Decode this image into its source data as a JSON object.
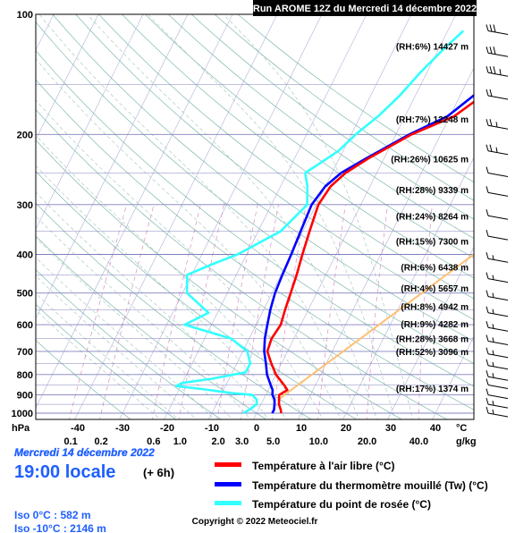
{
  "header": {
    "title": "Run AROME 12Z du Mercredi 14 décembre 2022"
  },
  "chart_data": {
    "type": "line",
    "y_unit": "hPa",
    "x_unit": "°C",
    "mixing_unit": "g/kg",
    "pressure_ticks": [
      "100",
      "200",
      "300",
      "400",
      "500",
      "600",
      "700",
      "800",
      "900",
      "1000"
    ],
    "temperature_ticks": [
      "-40",
      "-30",
      "-20",
      "-10",
      "0",
      "10",
      "20",
      "30",
      "40"
    ],
    "mixing_ticks": [
      "0.1",
      "0.2",
      "0.6",
      "1.0",
      "2.0",
      "3.0",
      "5.0",
      "10.0",
      "20.0",
      "40.0"
    ],
    "series": [
      {
        "name": "Température à l'air libre (°C)",
        "color": "#ff0000",
        "points": [
          {
            "p": 1000,
            "t": 5.5
          },
          {
            "p": 980,
            "t": 5
          },
          {
            "p": 950,
            "t": 4
          },
          {
            "p": 925,
            "t": 3.5
          },
          {
            "p": 900,
            "t": 3
          },
          {
            "p": 875,
            "t": 4.3
          },
          {
            "p": 850,
            "t": 3
          },
          {
            "p": 800,
            "t": 0
          },
          {
            "p": 750,
            "t": -2.3
          },
          {
            "p": 700,
            "t": -4.5
          },
          {
            "p": 650,
            "t": -5
          },
          {
            "p": 600,
            "t": -4.5
          },
          {
            "p": 550,
            "t": -5.2
          },
          {
            "p": 500,
            "t": -5.8
          },
          {
            "p": 450,
            "t": -6.5
          },
          {
            "p": 400,
            "t": -7.5
          },
          {
            "p": 350,
            "t": -8.5
          },
          {
            "p": 300,
            "t": -9.5
          },
          {
            "p": 270,
            "t": -8.8
          },
          {
            "p": 250,
            "t": -7
          },
          {
            "p": 230,
            "t": -3.5
          },
          {
            "p": 200,
            "t": 3.5
          },
          {
            "p": 180,
            "t": 11
          },
          {
            "p": 160,
            "t": 15
          },
          {
            "p": 140,
            "t": 21.5
          },
          {
            "p": 120,
            "t": 28
          },
          {
            "p": 100,
            "t": 35
          }
        ]
      },
      {
        "name": "Température du thermomètre mouillé (Tw) (°C)",
        "color": "#0000ff",
        "points": [
          {
            "p": 1000,
            "t": 3.5
          },
          {
            "p": 980,
            "t": 3.5
          },
          {
            "p": 950,
            "t": 3
          },
          {
            "p": 925,
            "t": 2.5
          },
          {
            "p": 900,
            "t": 1.5
          },
          {
            "p": 875,
            "t": 1
          },
          {
            "p": 850,
            "t": 0
          },
          {
            "p": 800,
            "t": -2
          },
          {
            "p": 750,
            "t": -3.5
          },
          {
            "p": 700,
            "t": -5.2
          },
          {
            "p": 650,
            "t": -6.5
          },
          {
            "p": 600,
            "t": -7.5
          },
          {
            "p": 550,
            "t": -8.5
          },
          {
            "p": 500,
            "t": -9.3
          },
          {
            "p": 450,
            "t": -9.7
          },
          {
            "p": 400,
            "t": -10
          },
          {
            "p": 350,
            "t": -10.5
          },
          {
            "p": 300,
            "t": -11
          },
          {
            "p": 270,
            "t": -10
          },
          {
            "p": 250,
            "t": -8
          },
          {
            "p": 230,
            "t": -4
          },
          {
            "p": 200,
            "t": 3
          },
          {
            "p": 180,
            "t": 9.5
          },
          {
            "p": 160,
            "t": 13
          },
          {
            "p": 140,
            "t": 19
          },
          {
            "p": 120,
            "t": 26
          },
          {
            "p": 100,
            "t": 33
          }
        ]
      },
      {
        "name": "Température du point de rosée (°C)",
        "color": "#33ffff",
        "points": [
          {
            "p": 1000,
            "t": -3
          },
          {
            "p": 980,
            "t": -2
          },
          {
            "p": 950,
            "t": -1
          },
          {
            "p": 925,
            "t": -1.5
          },
          {
            "p": 900,
            "t": -3
          },
          {
            "p": 890,
            "t": -8
          },
          {
            "p": 870,
            "t": -15
          },
          {
            "p": 855,
            "t": -21
          },
          {
            "p": 840,
            "t": -20
          },
          {
            "p": 820,
            "t": -14
          },
          {
            "p": 790,
            "t": -7
          },
          {
            "p": 750,
            "t": -7
          },
          {
            "p": 700,
            "t": -9
          },
          {
            "p": 650,
            "t": -14
          },
          {
            "p": 600,
            "t": -26
          },
          {
            "p": 580,
            "t": -24
          },
          {
            "p": 560,
            "t": -22
          },
          {
            "p": 500,
            "t": -29
          },
          {
            "p": 450,
            "t": -31
          },
          {
            "p": 420,
            "t": -26
          },
          {
            "p": 400,
            "t": -22
          },
          {
            "p": 350,
            "t": -15
          },
          {
            "p": 300,
            "t": -12
          },
          {
            "p": 270,
            "t": -14
          },
          {
            "p": 250,
            "t": -16
          },
          {
            "p": 220,
            "t": -11
          },
          {
            "p": 200,
            "t": -9
          },
          {
            "p": 180,
            "t": -6
          },
          {
            "p": 160,
            "t": -3.5
          },
          {
            "p": 140,
            "t": -1.5
          },
          {
            "p": 120,
            "t": 1.5
          },
          {
            "p": 110,
            "t": 3.5
          }
        ]
      }
    ],
    "freezing_level_line": {
      "color": "#ffc070",
      "points": [
        {
          "p": 920,
          "t": 3.5
        },
        {
          "p": 230,
          "t": 49
        }
      ]
    },
    "levels": [
      {
        "p": 120,
        "rh": "(RH:6%)",
        "alt": "14427 m"
      },
      {
        "p": 183,
        "rh": "(RH:7%)",
        "alt": "12248 m"
      },
      {
        "p": 230,
        "rh": "(RH:26%)",
        "alt": "10625 m"
      },
      {
        "p": 275,
        "rh": "(RH:28%)",
        "alt": "9339 m"
      },
      {
        "p": 320,
        "rh": "(RH:24%)",
        "alt": "8264 m"
      },
      {
        "p": 370,
        "rh": "(RH:15%)",
        "alt": "7300 m"
      },
      {
        "p": 430,
        "rh": "(RH:6%)",
        "alt": "6438 m"
      },
      {
        "p": 485,
        "rh": "(RH:4%)",
        "alt": "5657 m"
      },
      {
        "p": 540,
        "rh": "(RH:8%)",
        "alt": "4942 m"
      },
      {
        "p": 597,
        "rh": "(RH:9%)",
        "alt": "4282 m"
      },
      {
        "p": 650,
        "rh": "(RH:28%)",
        "alt": "3668 m"
      },
      {
        "p": 700,
        "rh": "(RH:52%)",
        "alt": "3096 m"
      },
      {
        "p": 865,
        "rh": "(RH:17%)",
        "alt": "1374 m"
      }
    ],
    "winds": [
      {
        "p": 110,
        "kt": 30
      },
      {
        "p": 125,
        "kt": 30
      },
      {
        "p": 140,
        "kt": 25
      },
      {
        "p": 160,
        "kt": 20
      },
      {
        "p": 190,
        "kt": 15
      },
      {
        "p": 220,
        "kt": 15
      },
      {
        "p": 250,
        "kt": 10
      },
      {
        "p": 280,
        "kt": 10
      },
      {
        "p": 320,
        "kt": 10
      },
      {
        "p": 360,
        "kt": 10
      },
      {
        "p": 410,
        "kt": 5
      },
      {
        "p": 460,
        "kt": 5
      },
      {
        "p": 510,
        "kt": 5
      },
      {
        "p": 560,
        "kt": 5
      },
      {
        "p": 610,
        "kt": 5
      },
      {
        "p": 660,
        "kt": 5
      },
      {
        "p": 710,
        "kt": 5
      },
      {
        "p": 760,
        "kt": 5
      },
      {
        "p": 810,
        "kt": 5
      },
      {
        "p": 850,
        "kt": 10
      },
      {
        "p": 900,
        "kt": 10
      },
      {
        "p": 950,
        "kt": 5
      },
      {
        "p": 1000,
        "kt": 5
      }
    ]
  },
  "footer": {
    "date": "Mercredi 14 décembre 2022",
    "time": "19:00 locale",
    "lead": "(+ 6h)",
    "iso0": "Iso 0°C : 582 m",
    "iso10": "Iso -10°C : 2146 m",
    "copyright": "Copyright © 2022 Meteociel.fr"
  },
  "legend": [
    {
      "label": "Température à l'air libre (°C)",
      "color": "#ff0000"
    },
    {
      "label": "Température du thermomètre mouillé (Tw) (°C)",
      "color": "#0000ff"
    },
    {
      "label": "Température du point de rosée (°C)",
      "color": "#33ffff"
    }
  ],
  "colors": {
    "isobar": "#8080c0",
    "isotherm": "#b0b0d8",
    "dry_adiabat": "#80b8b0",
    "moist_adiabat": "#9cc4b8",
    "mixing_ratio": "#d890c8",
    "wind": "#000000"
  }
}
